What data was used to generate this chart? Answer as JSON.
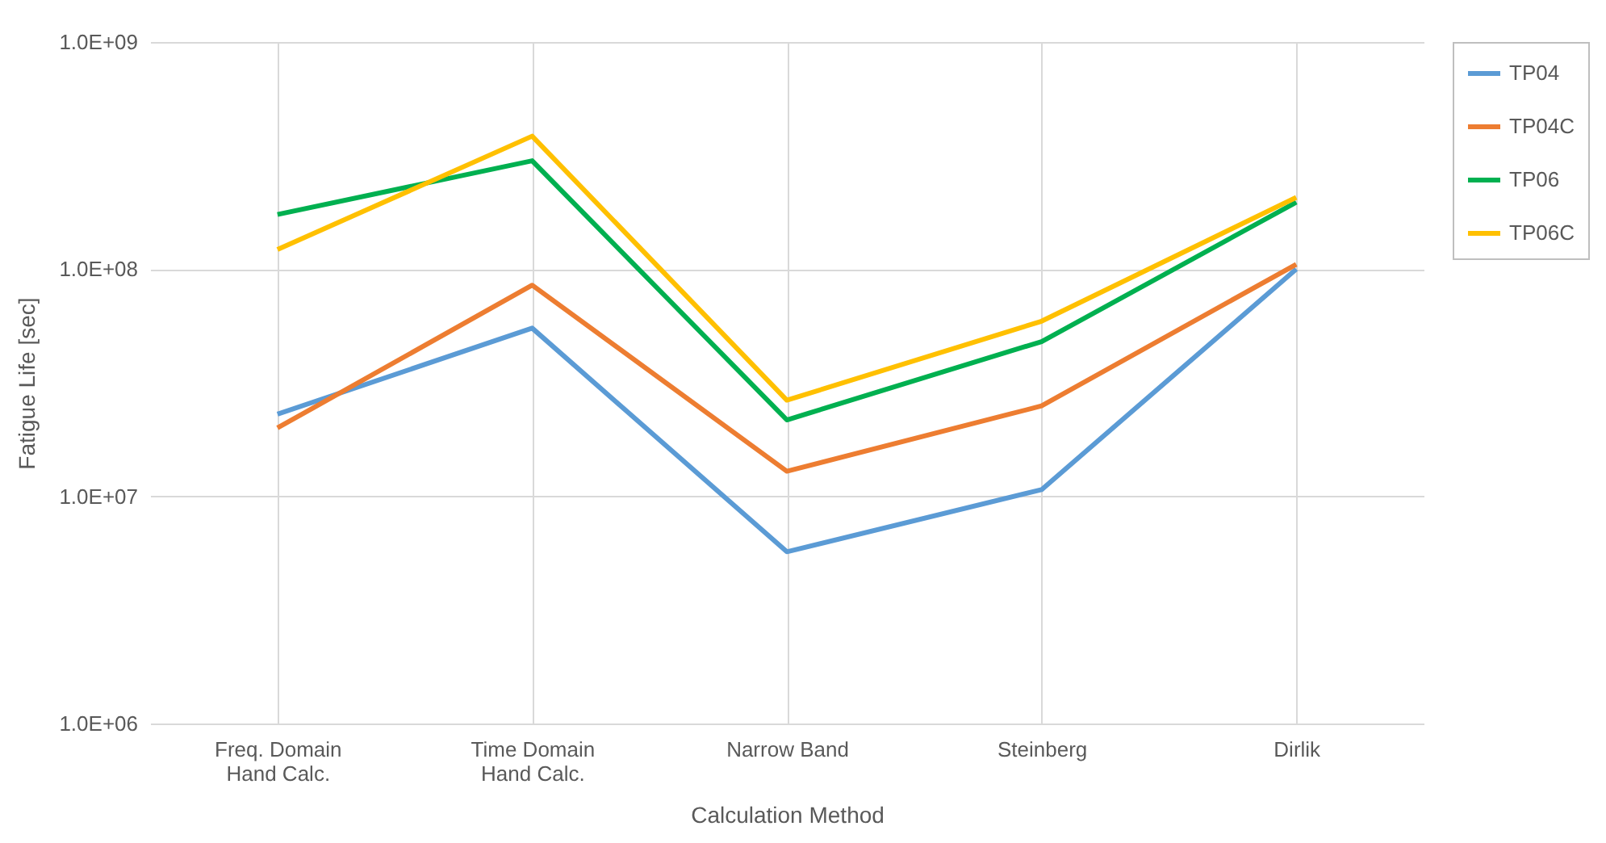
{
  "chart_data": {
    "type": "line",
    "xlabel": "Calculation Method",
    "ylabel": "Fatigue Life [sec]",
    "log": "y",
    "grid": true,
    "legend": "right",
    "marker": "none",
    "line_style": "solid",
    "categories": [
      "Freq. Domain Hand Calc.",
      "Time Domain Hand Calc.",
      "Narrow Band",
      "Steinberg",
      "Dirlik"
    ],
    "ylim": [
      1000000,
      1000000000
    ],
    "yticks": [
      {
        "value": 1000000,
        "label": "1.0E+06"
      },
      {
        "value": 10000000,
        "label": "1.0E+07"
      },
      {
        "value": 100000000,
        "label": "1.0E+08"
      },
      {
        "value": 1000000000,
        "label": "1.0E+09"
      }
    ],
    "series": [
      {
        "name": "TP04",
        "color": "#5b9bd5",
        "values": [
          23000000,
          55000000,
          5700000,
          10700000,
          100000000
        ]
      },
      {
        "name": "TP04C",
        "color": "#ed7d31",
        "values": [
          20000000,
          85000000,
          12900000,
          25000000,
          105000000
        ]
      },
      {
        "name": "TP06",
        "color": "#00b050",
        "values": [
          174000000,
          300000000,
          21700000,
          48000000,
          197000000
        ]
      },
      {
        "name": "TP06C",
        "color": "#ffc000",
        "values": [
          122000000,
          385000000,
          26500000,
          59000000,
          207000000
        ]
      }
    ]
  }
}
